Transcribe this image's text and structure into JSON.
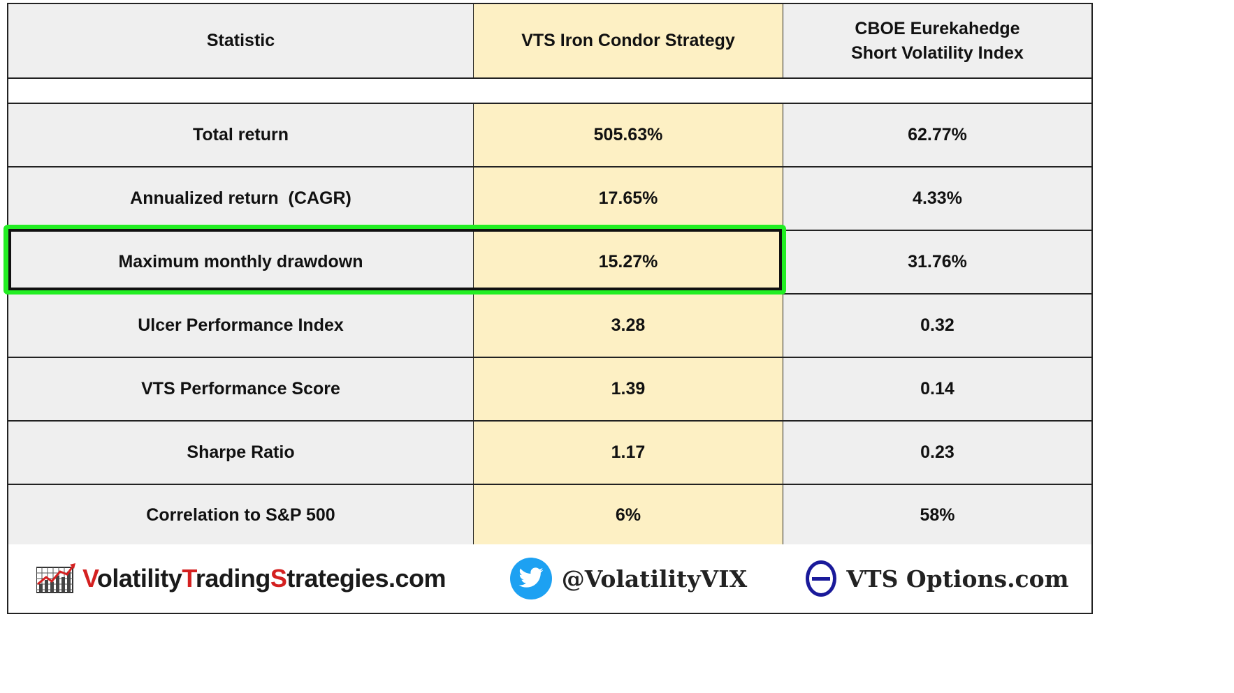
{
  "table": {
    "headers": [
      "Statistic",
      "VTS Iron Condor Strategy",
      "CBOE Eurekahedge\nShort Volatility Index"
    ],
    "header_line1_col3": "CBOE Eurekahedge",
    "header_line2_col3": "Short Volatility Index",
    "rows": [
      {
        "statistic": "Total return",
        "vts": "505.63%",
        "cboe": "62.77%"
      },
      {
        "statistic": "Annualized return  (CAGR)",
        "vts": "17.65%",
        "cboe": "4.33%"
      },
      {
        "statistic": "Maximum monthly drawdown",
        "vts": "15.27%",
        "cboe": "31.76%"
      },
      {
        "statistic": "Ulcer Performance Index",
        "vts": "3.28",
        "cboe": "0.32"
      },
      {
        "statistic": "VTS Performance Score",
        "vts": "1.39",
        "cboe": "0.14"
      },
      {
        "statistic": "Sharpe Ratio",
        "vts": "1.17",
        "cboe": "0.23"
      },
      {
        "statistic": "Correlation to S&P 500",
        "vts": "6%",
        "cboe": "58%"
      }
    ]
  },
  "highlight": {
    "row": "Maximum monthly drawdown",
    "color": "#22ee22"
  },
  "footer": {
    "brand_v": "V",
    "brand_olatility": "olatility",
    "brand_t": "T",
    "brand_rading": "rading",
    "brand_s": "S",
    "brand_rest": "trategies.com",
    "twitter_handle": "@VolatilityVIX",
    "vts_options": "VTS Options.com"
  },
  "colors": {
    "vts_column": "#fdf0c4",
    "gray_column": "#efefef",
    "twitter": "#1da1f2",
    "brand_red": "#d42020",
    "theta": "#1a1a9a"
  },
  "icons": [
    "chart-logo-icon",
    "twitter-bird-icon",
    "theta-icon"
  ]
}
